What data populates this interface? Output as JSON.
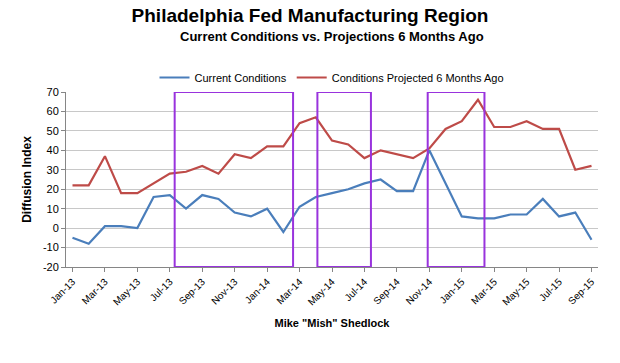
{
  "chart_data": {
    "type": "line",
    "title": "Philadelphia Fed Manufacturing Region",
    "subtitle": "Current Conditions vs. Projections 6 Months Ago",
    "x_label": "Mike \"Mish\" Shedlock",
    "y_label": "Diffusion Index",
    "categories": [
      "Jan-13",
      null,
      "Mar-13",
      null,
      "May-13",
      null,
      "Jul-13",
      null,
      "Sep-13",
      null,
      "Nov-13",
      null,
      "Jan-14",
      null,
      "Mar-14",
      null,
      "May-14",
      null,
      "Jul-14",
      null,
      "Sep-14",
      null,
      "Nov-14",
      null,
      "Jan-15",
      null,
      "Mar-15",
      null,
      "May-15",
      null,
      "Jul-15",
      null,
      "Sep-15"
    ],
    "series": [
      {
        "name": "Current Conditions",
        "color": "#4a7ebb",
        "values": [
          -5,
          -8,
          1,
          1,
          0,
          16,
          17,
          10,
          17,
          15,
          8,
          6,
          10,
          -2,
          11,
          16,
          18,
          20,
          23,
          25,
          19,
          19,
          40,
          23,
          6,
          5,
          5,
          7,
          7,
          15,
          6,
          8,
          -6
        ]
      },
      {
        "name": "Conditions Projected 6 Months Ago",
        "color": "#be4b48",
        "values": [
          22,
          22,
          37,
          18,
          18,
          23,
          28,
          29,
          32,
          28,
          38,
          36,
          42,
          42,
          54,
          57,
          45,
          43,
          36,
          40,
          38,
          36,
          41,
          51,
          55,
          66,
          52,
          52,
          55,
          51,
          51,
          30,
          32
        ]
      }
    ],
    "highlights": [
      {
        "x0": 6.3,
        "x1": 13.6,
        "y0": -20,
        "y1": 70
      },
      {
        "x0": 15.1,
        "x1": 18.4,
        "y0": -20,
        "y1": 70
      },
      {
        "x0": 21.9,
        "x1": 25.4,
        "y0": -20,
        "y1": 70
      }
    ],
    "ylim": [
      -20,
      70
    ],
    "yticks": [
      -20,
      -10,
      0,
      10,
      20,
      30,
      40,
      50,
      60,
      70
    ],
    "grid": true,
    "legend": "top"
  }
}
